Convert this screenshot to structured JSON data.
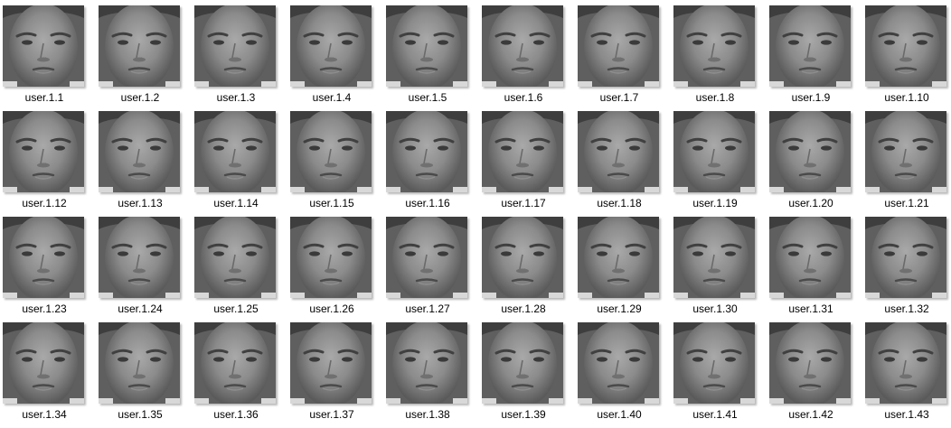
{
  "files": [
    [
      "user.1.1",
      "user.1.2",
      "user.1.3",
      "user.1.4",
      "user.1.5",
      "user.1.6",
      "user.1.7",
      "user.1.8",
      "user.1.9",
      "user.1.10"
    ],
    [
      "user.1.12",
      "user.1.13",
      "user.1.14",
      "user.1.15",
      "user.1.16",
      "user.1.17",
      "user.1.18",
      "user.1.19",
      "user.1.20",
      "user.1.21"
    ],
    [
      "user.1.23",
      "user.1.24",
      "user.1.25",
      "user.1.26",
      "user.1.27",
      "user.1.28",
      "user.1.29",
      "user.1.30",
      "user.1.31",
      "user.1.32"
    ],
    [
      "user.1.34",
      "user.1.35",
      "user.1.36",
      "user.1.37",
      "user.1.38",
      "user.1.39",
      "user.1.40",
      "user.1.41",
      "user.1.42",
      "user.1.43"
    ]
  ],
  "thumbnail_icon": "grayscale-face-photo"
}
